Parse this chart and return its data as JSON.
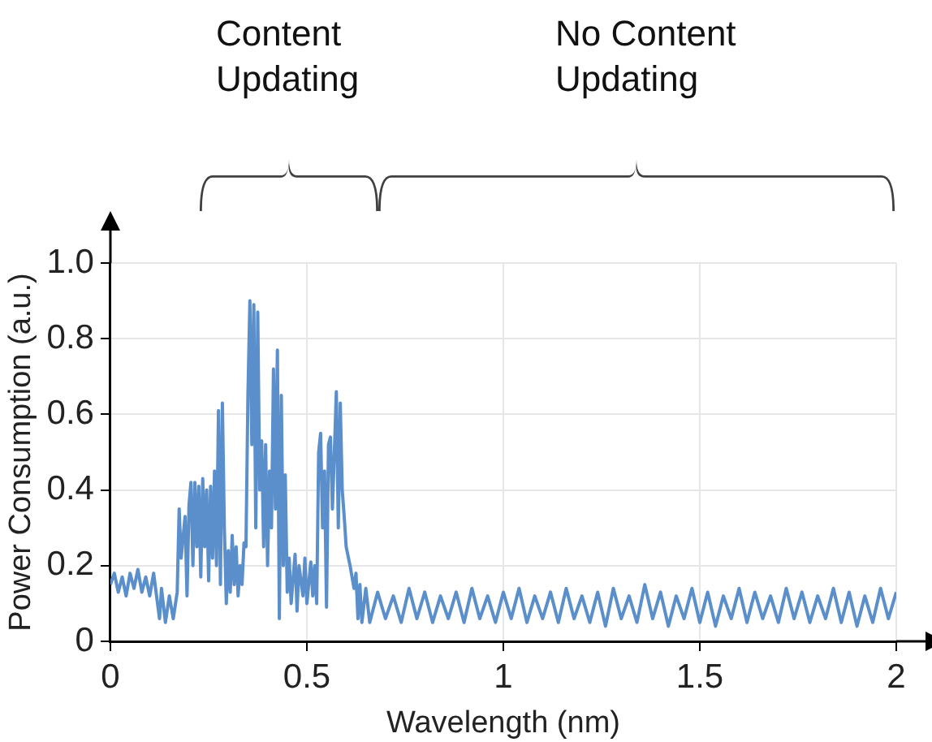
{
  "chart_data": {
    "type": "line",
    "xlabel": "Wavelength (nm)",
    "ylabel": "Power Consumption (a.u.)",
    "xlim": [
      0,
      2
    ],
    "xticks": [
      0,
      0.5,
      1,
      1.5,
      2
    ],
    "ylim": [
      0,
      1
    ],
    "yticks": [
      0,
      0.2,
      0.4,
      0.6,
      0.8,
      {
        "value": 1,
        "label": "1.0"
      }
    ],
    "grid": true,
    "legend": false,
    "marker": "none",
    "line_style": "solid",
    "annotations": [
      "Content Updating",
      "No Content Updating"
    ],
    "series": [
      {
        "color": "#5b8fcb",
        "x": [
          0,
          0.01,
          0.02,
          0.03,
          0.04,
          0.05,
          0.06,
          0.07,
          0.08,
          0.09,
          0.1,
          0.11,
          0.12,
          0.125,
          0.13,
          0.14,
          0.15,
          0.16,
          0.17,
          0.175,
          0.18,
          0.19,
          0.195,
          0.2,
          0.205,
          0.21,
          0.215,
          0.22,
          0.225,
          0.23,
          0.235,
          0.24,
          0.245,
          0.25,
          0.255,
          0.26,
          0.265,
          0.27,
          0.275,
          0.28,
          0.285,
          0.29,
          0.295,
          0.3,
          0.305,
          0.31,
          0.315,
          0.32,
          0.325,
          0.33,
          0.335,
          0.34,
          0.345,
          0.35,
          0.355,
          0.36,
          0.365,
          0.37,
          0.375,
          0.38,
          0.385,
          0.39,
          0.395,
          0.4,
          0.405,
          0.41,
          0.415,
          0.42,
          0.425,
          0.43,
          0.435,
          0.44,
          0.445,
          0.45,
          0.455,
          0.46,
          0.47,
          0.475,
          0.48,
          0.49,
          0.495,
          0.5,
          0.51,
          0.515,
          0.52,
          0.525,
          0.53,
          0.535,
          0.54,
          0.545,
          0.55,
          0.555,
          0.56,
          0.565,
          0.57,
          0.575,
          0.58,
          0.585,
          0.59,
          0.595,
          0.6,
          0.61,
          0.62,
          0.625,
          0.63,
          0.635,
          0.64,
          0.65,
          0.66,
          0.68,
          0.7,
          0.72,
          0.74,
          0.76,
          0.78,
          0.8,
          0.82,
          0.84,
          0.86,
          0.88,
          0.9,
          0.92,
          0.94,
          0.96,
          0.98,
          1,
          1.02,
          1.04,
          1.06,
          1.08,
          1.1,
          1.12,
          1.14,
          1.16,
          1.18,
          1.2,
          1.22,
          1.24,
          1.26,
          1.28,
          1.3,
          1.32,
          1.34,
          1.36,
          1.38,
          1.4,
          1.42,
          1.44,
          1.46,
          1.48,
          1.5,
          1.52,
          1.54,
          1.56,
          1.58,
          1.6,
          1.62,
          1.64,
          1.66,
          1.68,
          1.7,
          1.72,
          1.74,
          1.76,
          1.78,
          1.8,
          1.82,
          1.84,
          1.86,
          1.88,
          1.9,
          1.92,
          1.94,
          1.96,
          1.98,
          2
        ],
        "values": [
          0.15,
          0.18,
          0.13,
          0.17,
          0.12,
          0.18,
          0.14,
          0.19,
          0.13,
          0.17,
          0.12,
          0.18,
          0.1,
          0.06,
          0.14,
          0.05,
          0.12,
          0.06,
          0.13,
          0.35,
          0.22,
          0.33,
          0.12,
          0.36,
          0.42,
          0.2,
          0.42,
          0.25,
          0.41,
          0.17,
          0.43,
          0.25,
          0.4,
          0.16,
          0.41,
          0.22,
          0.45,
          0.2,
          0.61,
          0.15,
          0.63,
          0.3,
          0.1,
          0.24,
          0.13,
          0.28,
          0.15,
          0.25,
          0.12,
          0.2,
          0.15,
          0.26,
          0.25,
          0.65,
          0.9,
          0.52,
          0.89,
          0.3,
          0.87,
          0.4,
          0.53,
          0.25,
          0.52,
          0.2,
          0.45,
          0.3,
          0.72,
          0.35,
          0.77,
          0.06,
          0.65,
          0.2,
          0.44,
          0.13,
          0.22,
          0.1,
          0.23,
          0.08,
          0.2,
          0.12,
          0.22,
          0.1,
          0.21,
          0.12,
          0.2,
          0.1,
          0.5,
          0.55,
          0.3,
          0.45,
          0.09,
          0.52,
          0.54,
          0.35,
          0.5,
          0.66,
          0.3,
          0.63,
          0.4,
          0.33,
          0.25,
          0.2,
          0.14,
          0.18,
          0.06,
          0.15,
          0.05,
          0.14,
          0.05,
          0.13,
          0.06,
          0.12,
          0.05,
          0.14,
          0.06,
          0.13,
          0.05,
          0.12,
          0.06,
          0.13,
          0.05,
          0.14,
          0.06,
          0.12,
          0.05,
          0.13,
          0.06,
          0.14,
          0.05,
          0.12,
          0.06,
          0.13,
          0.05,
          0.14,
          0.06,
          0.12,
          0.05,
          0.13,
          0.04,
          0.14,
          0.06,
          0.12,
          0.05,
          0.15,
          0.06,
          0.13,
          0.04,
          0.12,
          0.06,
          0.14,
          0.05,
          0.13,
          0.04,
          0.12,
          0.06,
          0.14,
          0.05,
          0.13,
          0.06,
          0.12,
          0.05,
          0.14,
          0.06,
          0.13,
          0.05,
          0.12,
          0.06,
          0.14,
          0.05,
          0.13,
          0.04,
          0.12,
          0.05,
          0.14,
          0.06,
          0.13
        ]
      }
    ]
  }
}
